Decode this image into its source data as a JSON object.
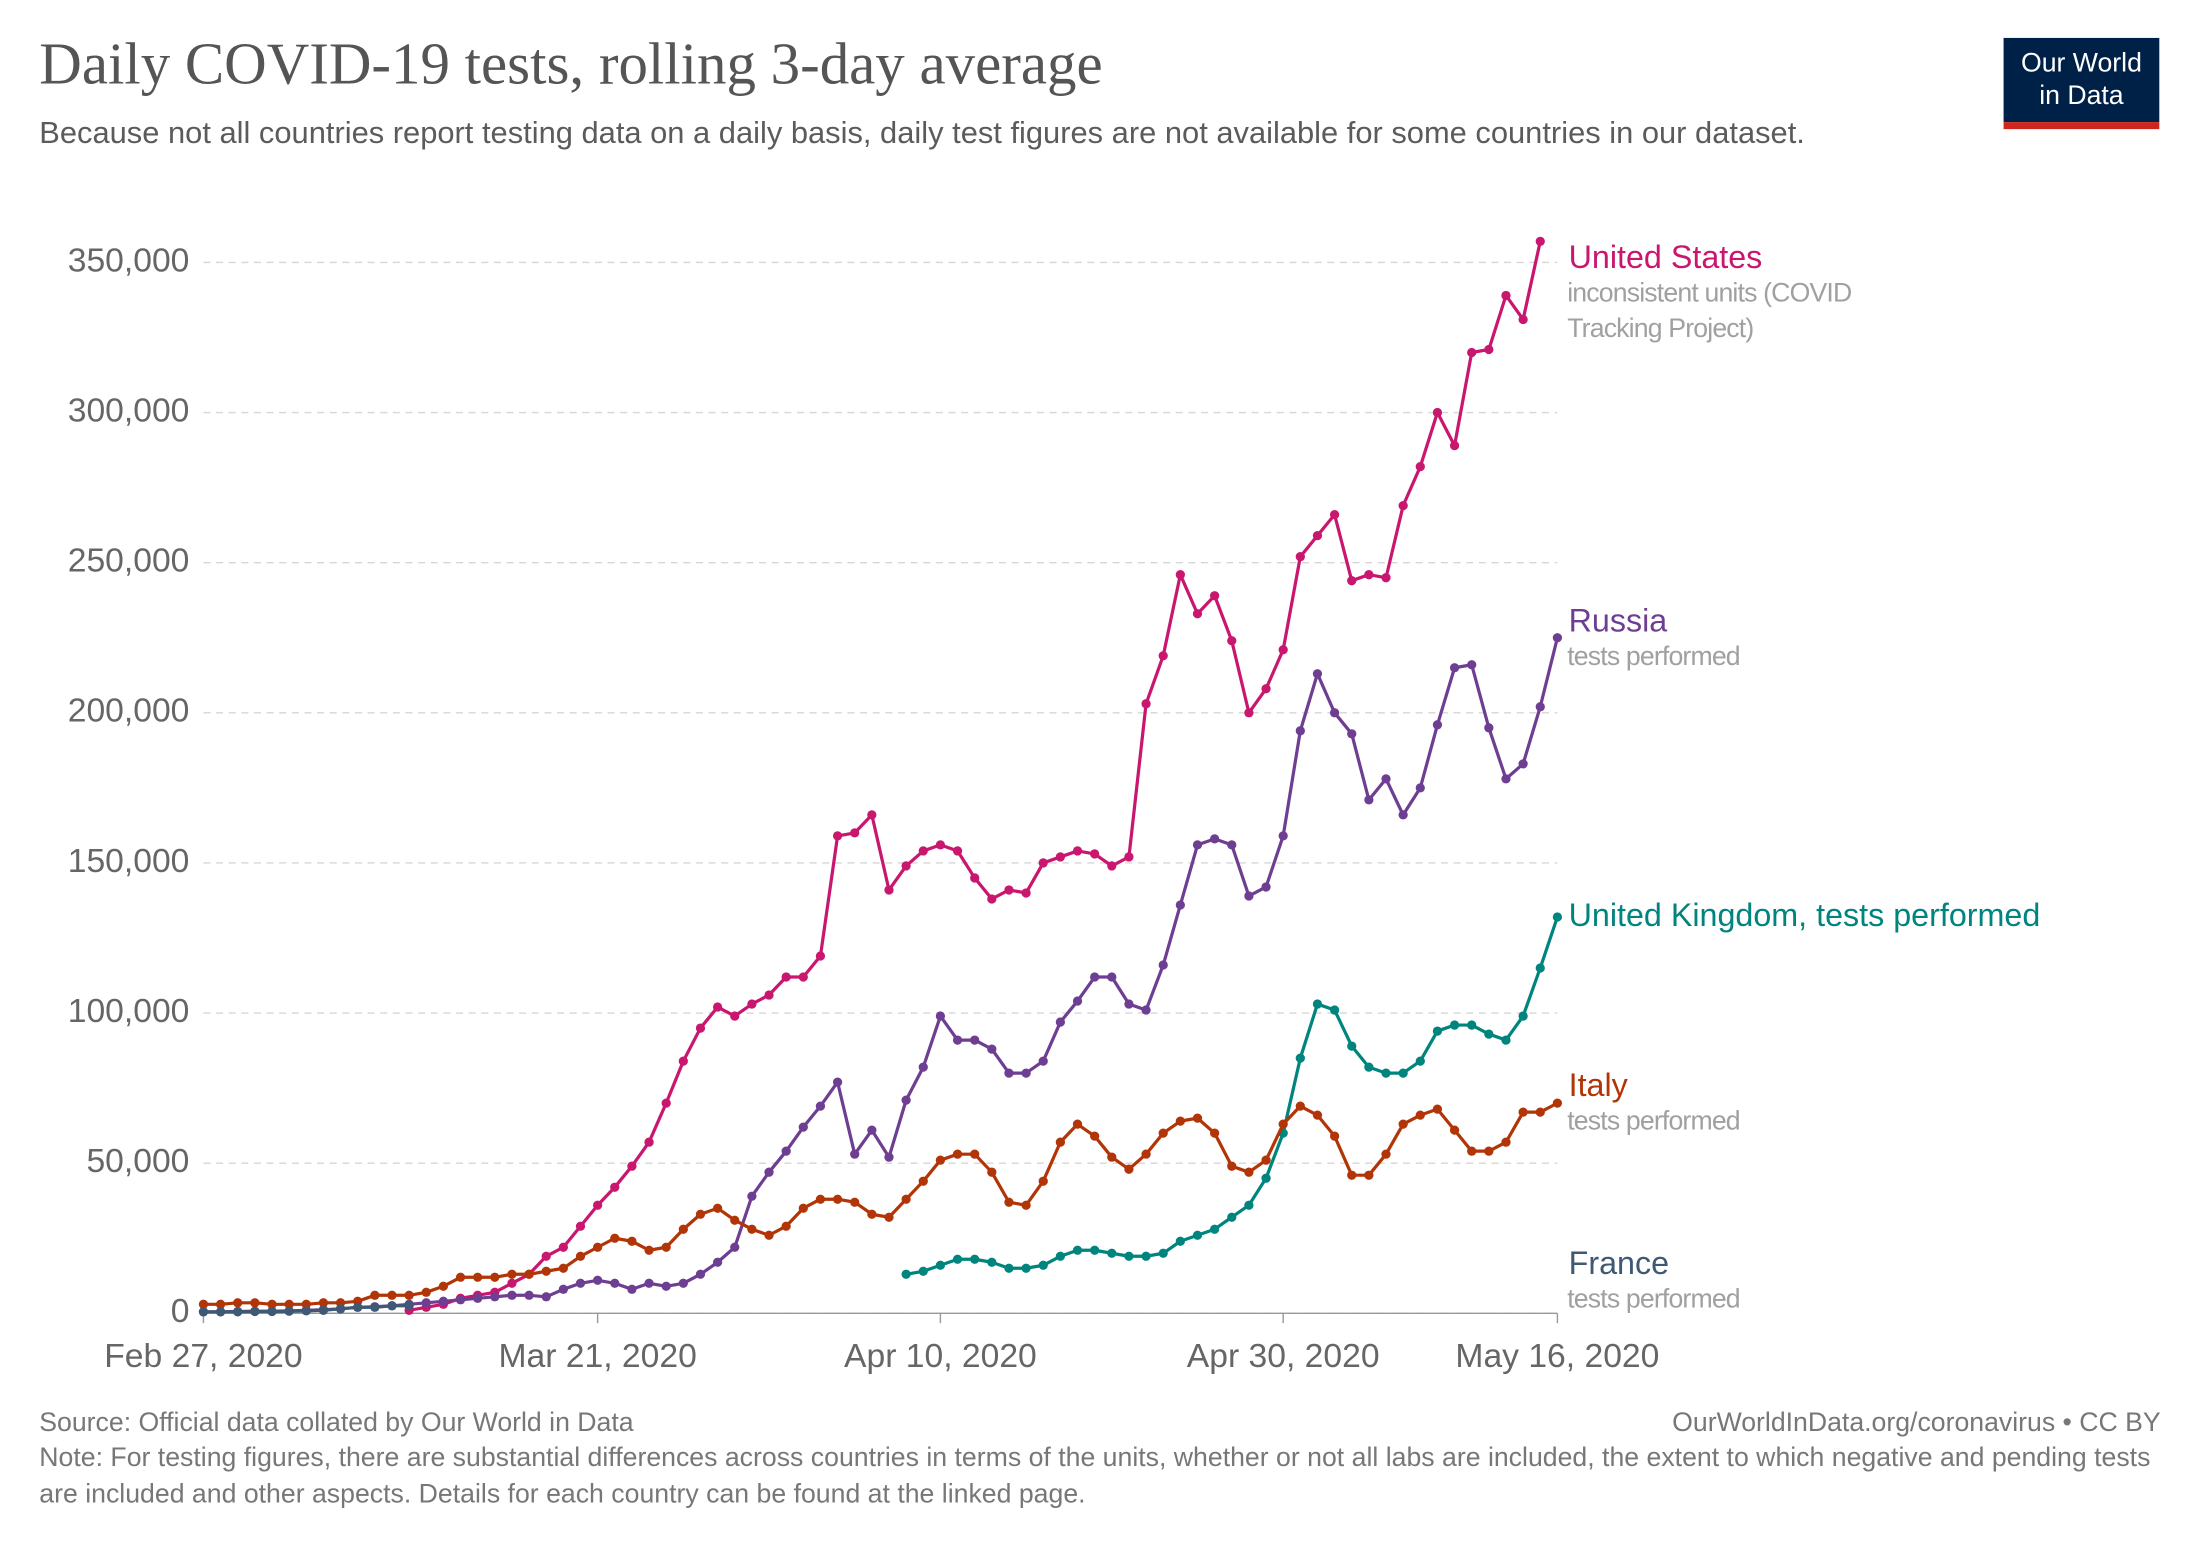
{
  "chart_data": {
    "type": "line",
    "title": "Daily COVID-19 tests, rolling 3-day average",
    "subtitle": "Because not all countries report testing data on a daily basis, daily test figures are not available for some countries in our dataset.",
    "logo": [
      "Our World",
      "in Data"
    ],
    "source": "Source: Official data collated by Our World in Data",
    "license": "OurWorldInData.org/coronavirus • CC BY",
    "note": "Note: For testing figures, there are substantial differences across countries in terms of the units, whether or not all labs are included, the extent to which negative and pending tests are included and other aspects. Details for each country can be found at the linked page.",
    "x": [
      "2020-02-27",
      "2020-02-28",
      "2020-02-29",
      "2020-03-01",
      "2020-03-02",
      "2020-03-03",
      "2020-03-04",
      "2020-03-05",
      "2020-03-06",
      "2020-03-07",
      "2020-03-08",
      "2020-03-09",
      "2020-03-10",
      "2020-03-11",
      "2020-03-12",
      "2020-03-13",
      "2020-03-14",
      "2020-03-15",
      "2020-03-16",
      "2020-03-17",
      "2020-03-18",
      "2020-03-19",
      "2020-03-20",
      "2020-03-21",
      "2020-03-22",
      "2020-03-23",
      "2020-03-24",
      "2020-03-25",
      "2020-03-26",
      "2020-03-27",
      "2020-03-28",
      "2020-03-29",
      "2020-03-30",
      "2020-03-31",
      "2020-04-01",
      "2020-04-02",
      "2020-04-03",
      "2020-04-04",
      "2020-04-05",
      "2020-04-06",
      "2020-04-07",
      "2020-04-08",
      "2020-04-09",
      "2020-04-10",
      "2020-04-11",
      "2020-04-12",
      "2020-04-13",
      "2020-04-14",
      "2020-04-15",
      "2020-04-16",
      "2020-04-17",
      "2020-04-18",
      "2020-04-19",
      "2020-04-20",
      "2020-04-21",
      "2020-04-22",
      "2020-04-23",
      "2020-04-24",
      "2020-04-25",
      "2020-04-26",
      "2020-04-27",
      "2020-04-28",
      "2020-04-29",
      "2020-04-30",
      "2020-05-01",
      "2020-05-02",
      "2020-05-03",
      "2020-05-04",
      "2020-05-05",
      "2020-05-06",
      "2020-05-07",
      "2020-05-08",
      "2020-05-09",
      "2020-05-10",
      "2020-05-11",
      "2020-05-12",
      "2020-05-13",
      "2020-05-14",
      "2020-05-15",
      "2020-05-16"
    ],
    "xlim": [
      "2020-02-27",
      "2020-05-16"
    ],
    "xticks": [
      {
        "value": "2020-02-27",
        "label": "Feb 27, 2020"
      },
      {
        "value": "2020-03-21",
        "label": "Mar 21, 2020"
      },
      {
        "value": "2020-04-10",
        "label": "Apr 10, 2020"
      },
      {
        "value": "2020-04-30",
        "label": "Apr 30, 2020"
      },
      {
        "value": "2020-05-16",
        "label": "May 16, 2020"
      }
    ],
    "ylim": [
      0,
      350000
    ],
    "yticks": [
      0,
      {
        "value": 50000,
        "label": "50,000"
      },
      {
        "value": 100000,
        "label": "100,000"
      },
      {
        "value": 150000,
        "label": "150,000"
      },
      {
        "value": 200000,
        "label": "200,000"
      },
      {
        "value": 250000,
        "label": "250,000"
      },
      {
        "value": 300000,
        "label": "300,000"
      },
      {
        "value": 350000,
        "label": "350,000"
      }
    ],
    "grid": true,
    "series": [
      {
        "name": "United States",
        "annotation": "inconsistent units (COVID Tracking Project)",
        "color": "#c9166e",
        "values": [
          null,
          null,
          null,
          null,
          null,
          null,
          null,
          null,
          null,
          null,
          null,
          null,
          1000,
          2000,
          3000,
          5000,
          6000,
          7000,
          10000,
          13000,
          19000,
          22000,
          29000,
          36000,
          42000,
          49000,
          57000,
          70000,
          84000,
          95000,
          102000,
          99000,
          103000,
          106000,
          112000,
          112000,
          119000,
          159000,
          160000,
          166000,
          141000,
          149000,
          154000,
          156000,
          154000,
          145000,
          138000,
          141000,
          140000,
          150000,
          152000,
          154000,
          153000,
          149000,
          152000,
          203000,
          219000,
          246000,
          233000,
          239000,
          224000,
          200000,
          208000,
          221000,
          252000,
          259000,
          266000,
          244000,
          246000,
          245000,
          269000,
          282000,
          300000,
          289000,
          320000,
          321000,
          339000,
          331000,
          357000,
          null
        ]
      },
      {
        "name": "Russia",
        "annotation": "tests performed",
        "color": "#6d3e91",
        "values": [
          500,
          500,
          600,
          700,
          700,
          800,
          1000,
          1200,
          1500,
          2000,
          2200,
          2500,
          3000,
          3500,
          4000,
          4500,
          5000,
          5500,
          6000,
          6000,
          5500,
          8000,
          10000,
          11000,
          10000,
          8000,
          10000,
          9000,
          10000,
          13000,
          17000,
          22000,
          39000,
          47000,
          54000,
          62000,
          69000,
          77000,
          53000,
          61000,
          52000,
          71000,
          82000,
          99000,
          91000,
          91000,
          88000,
          80000,
          80000,
          84000,
          97000,
          104000,
          112000,
          112000,
          103000,
          101000,
          116000,
          136000,
          156000,
          158000,
          156000,
          139000,
          142000,
          159000,
          194000,
          213000,
          200000,
          193000,
          171000,
          178000,
          166000,
          175000,
          196000,
          215000,
          216000,
          195000,
          178000,
          183000,
          202000,
          225000
        ]
      },
      {
        "name": "United Kingdom, tests performed",
        "color": "#00847e",
        "values": [
          null,
          null,
          null,
          null,
          null,
          null,
          null,
          null,
          null,
          null,
          null,
          null,
          null,
          null,
          null,
          null,
          null,
          null,
          null,
          null,
          null,
          null,
          null,
          null,
          null,
          null,
          null,
          null,
          null,
          null,
          null,
          null,
          null,
          null,
          null,
          null,
          null,
          null,
          null,
          null,
          null,
          13000,
          14000,
          16000,
          18000,
          18000,
          17000,
          15000,
          15000,
          16000,
          19000,
          21000,
          21000,
          20000,
          19000,
          19000,
          20000,
          24000,
          26000,
          28000,
          32000,
          36000,
          45000,
          60000,
          85000,
          103000,
          101000,
          89000,
          82000,
          80000,
          80000,
          84000,
          94000,
          96000,
          96000,
          93000,
          91000,
          99000,
          115000,
          132000
        ]
      },
      {
        "name": "Italy",
        "annotation": "tests performed",
        "color": "#b13507",
        "values": [
          3000,
          3000,
          3500,
          3500,
          3000,
          3000,
          3000,
          3500,
          3500,
          4000,
          6000,
          6000,
          6000,
          7000,
          9000,
          12000,
          12000,
          12000,
          13000,
          13000,
          14000,
          15000,
          19000,
          22000,
          25000,
          24000,
          21000,
          22000,
          28000,
          33000,
          35000,
          31000,
          28000,
          26000,
          29000,
          35000,
          38000,
          38000,
          37000,
          33000,
          32000,
          38000,
          44000,
          51000,
          53000,
          53000,
          47000,
          37000,
          36000,
          44000,
          57000,
          63000,
          59000,
          52000,
          48000,
          53000,
          60000,
          64000,
          65000,
          60000,
          49000,
          47000,
          51000,
          63000,
          69000,
          66000,
          59000,
          46000,
          46000,
          53000,
          63000,
          66000,
          68000,
          61000,
          54000,
          54000,
          57000,
          67000,
          67000,
          70000
        ]
      },
      {
        "name": "France",
        "annotation": "tests performed",
        "color": "#3f5873",
        "values": [
          500,
          500,
          500,
          600,
          600,
          700,
          800,
          1000,
          1500,
          2000,
          2000,
          2500,
          2500,
          null,
          null,
          null,
          null,
          null,
          null,
          null,
          null,
          null,
          null,
          null,
          null,
          null,
          null,
          null,
          null,
          null,
          null,
          null,
          null,
          null,
          null,
          null,
          null,
          null,
          null,
          null,
          null,
          null,
          null,
          null,
          null,
          null,
          null,
          null,
          null,
          null,
          null,
          null,
          null,
          null,
          null,
          null,
          null,
          null,
          null,
          null,
          null,
          null,
          null,
          null,
          null,
          null,
          null,
          null,
          null,
          null,
          null,
          null,
          null,
          null,
          null,
          null,
          null,
          null,
          null,
          null
        ]
      }
    ]
  }
}
